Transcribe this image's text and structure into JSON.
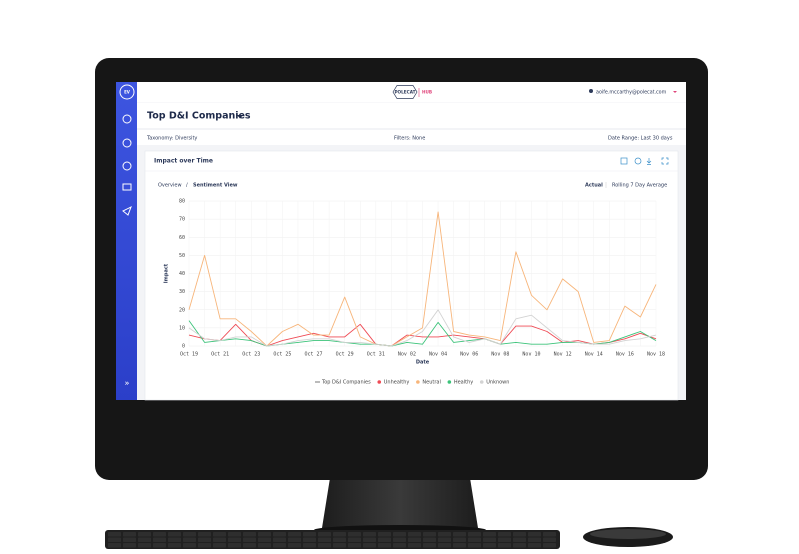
{
  "app": {
    "badge": "EV",
    "logo": "POLECAT",
    "product": "HUB",
    "user": "aoife.mccarthy@polecat.com",
    "expand": "»"
  },
  "page_title": "Top D&I Companies",
  "filters": {
    "taxonomy": "Taxonomy: Diversity",
    "filters": "Filters: None",
    "date_range": "Date Range: Last 30 days"
  },
  "card_title": "Impact over Time",
  "tabs": [
    "Overview",
    "/",
    "Sentiment View"
  ],
  "views": [
    "Actual",
    "Rolling 7 Day Average"
  ],
  "chart_data": {
    "type": "line",
    "x_label": "Date",
    "y_label": "Impact",
    "categories": [
      "Oct 19",
      null,
      "Oct 21",
      null,
      "Oct 23",
      null,
      "Oct 25",
      null,
      "Oct 27",
      null,
      "Oct 29",
      null,
      "Oct 31",
      null,
      "Nov 02",
      null,
      "Nov 04",
      null,
      "Nov 06",
      null,
      "Nov 08",
      null,
      "Nov 10",
      null,
      "Nov 12",
      null,
      "Nov 14",
      null,
      "Nov 16",
      null,
      "Nov 18"
    ],
    "series": [
      {
        "name": "Top D&I Companies",
        "color": "#555555",
        "values": [
          null,
          null,
          null,
          null,
          null,
          null,
          null,
          null,
          null,
          null,
          null,
          null,
          null,
          null,
          null,
          null,
          null,
          null,
          null,
          null,
          null,
          null,
          null,
          null,
          null,
          null,
          null,
          null,
          null,
          null,
          null
        ]
      },
      {
        "name": "Unhealthy",
        "color": "#ef4b55",
        "values": [
          6,
          4,
          3,
          12,
          3,
          0,
          3,
          5,
          7,
          5,
          5,
          12,
          1,
          0,
          6,
          5,
          5,
          6,
          5,
          4,
          1,
          11,
          11,
          8,
          2,
          3,
          1,
          2,
          4,
          7,
          4
        ]
      },
      {
        "name": "Neutral",
        "color": "#f7b57a",
        "values": [
          20,
          50,
          15,
          15,
          8,
          0,
          8,
          12,
          6,
          6,
          27,
          5,
          1,
          0,
          5,
          10,
          74,
          8,
          6,
          5,
          3,
          52,
          28,
          20,
          37,
          30,
          2,
          3,
          22,
          16,
          34
        ]
      },
      {
        "name": "Healthy",
        "color": "#3cc37a",
        "values": [
          14,
          2,
          3,
          4,
          3,
          0,
          1,
          2,
          3,
          3,
          2,
          1,
          1,
          0,
          2,
          1,
          13,
          2,
          3,
          4,
          1,
          2,
          1,
          1,
          2,
          2,
          1,
          2,
          5,
          8,
          3
        ]
      },
      {
        "name": "Unknown",
        "color": "#d3d3d3",
        "values": [
          10,
          4,
          3,
          5,
          5,
          0,
          1,
          3,
          4,
          4,
          2,
          2,
          1,
          0,
          3,
          8,
          20,
          5,
          2,
          4,
          1,
          15,
          17,
          10,
          3,
          2,
          1,
          1,
          3,
          4,
          6
        ]
      }
    ],
    "ylim": [
      0,
      80
    ],
    "yticks": [
      0,
      10,
      20,
      30,
      40,
      50,
      60,
      70,
      80
    ],
    "grid": true
  }
}
